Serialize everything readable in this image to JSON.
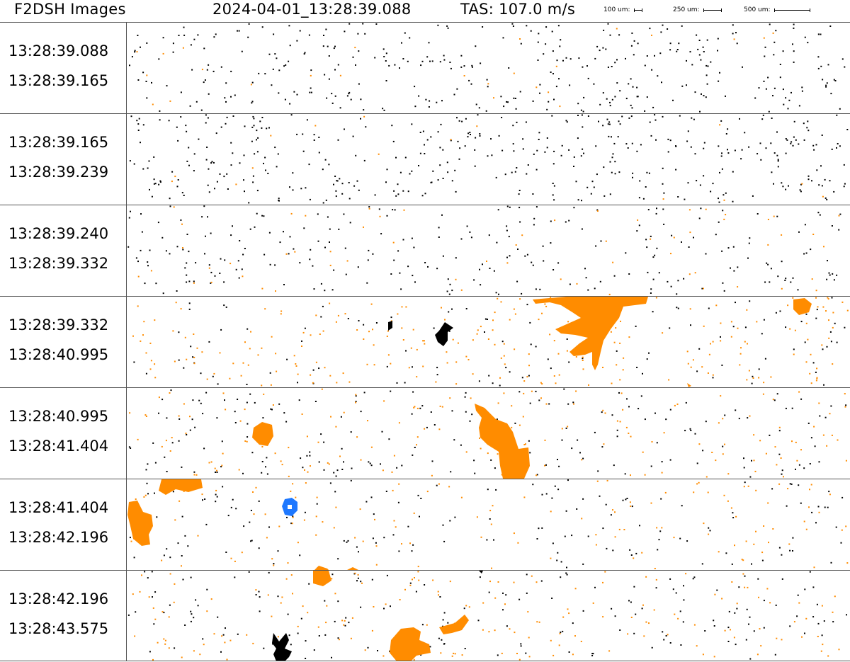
{
  "header": {
    "title": "F2DSH Images",
    "timestamp": "2024-04-01_13:28:39.088",
    "tas": "TAS: 107.0 m/s",
    "scales": [
      {
        "label": "100 um:",
        "um": 100
      },
      {
        "label": "250 um:",
        "um": 250
      },
      {
        "label": "500 um:",
        "um": 500
      }
    ]
  },
  "colors": {
    "small_particle": "#000000",
    "orange_particle": "#ff8c00",
    "blue_particle": "#1e78ff",
    "divider": "#555555"
  },
  "strips": [
    {
      "start": "13:28:39.088",
      "end": "13:28:39.165"
    },
    {
      "start": "13:28:39.165",
      "end": "13:28:39.239"
    },
    {
      "start": "13:28:39.240",
      "end": "13:28:39.332"
    },
    {
      "start": "13:28:39.332",
      "end": "13:28:40.995"
    },
    {
      "start": "13:28:40.995",
      "end": "13:28:41.404"
    },
    {
      "start": "13:28:41.404",
      "end": "13:28:42.196"
    },
    {
      "start": "13:28:42.196",
      "end": "13:28:43.575"
    }
  ]
}
